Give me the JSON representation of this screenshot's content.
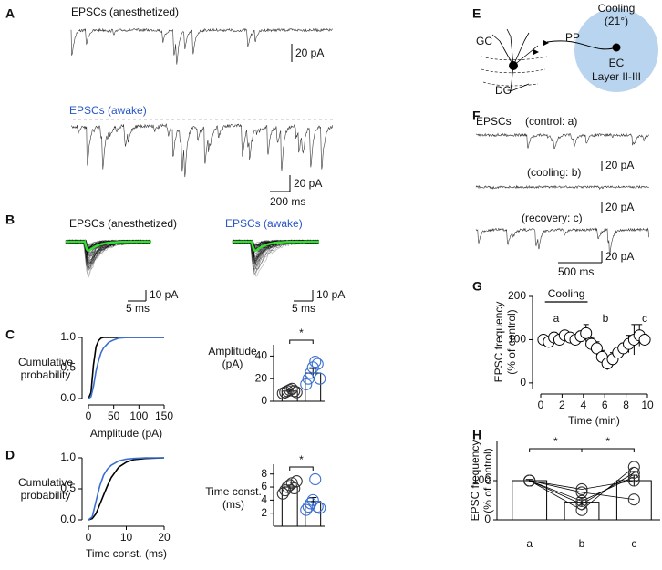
{
  "panel_labels": [
    "A",
    "B",
    "C",
    "D",
    "E",
    "F",
    "G",
    "H"
  ],
  "trace_labels": [
    "EPSCs (anesthetized)",
    "EPSCs (awake)",
    "EPSCs (anesthetized)",
    "EPSCs (awake)",
    "EPSCs",
    "(control: a)",
    "(cooling: b)",
    "(recovery: c)"
  ],
  "scale_bars": [
    "20 pA",
    "20 pA",
    "200 ms",
    "10 pA",
    "5 ms",
    "10 pA",
    "5 ms",
    "20 pA",
    "20 pA",
    "20 pA",
    "500 ms"
  ],
  "diagram": {
    "title": "Cooling",
    "temperature": "(21°)",
    "region": "EC",
    "layer": "Layer II-III",
    "gc": "GC",
    "pp": "PP",
    "dg": "DG"
  },
  "chart_data": [
    {
      "type": "line",
      "ylabel": [
        "Cumulative",
        "probability"
      ],
      "ylabel_orientation": "horizontal",
      "xlabel": "Amplitude (pA)",
      "x": [
        0,
        5,
        10,
        15,
        20,
        25,
        30,
        40,
        50,
        60,
        80,
        100,
        150
      ],
      "series": [
        {
          "color": "#000000",
          "values": [
            0,
            0.1,
            0.55,
            0.85,
            0.95,
            0.99,
            1,
            1,
            1,
            1,
            1,
            1,
            1
          ]
        },
        {
          "color": "#3a6fd0",
          "values": [
            0,
            0.03,
            0.2,
            0.45,
            0.62,
            0.75,
            0.83,
            0.92,
            0.96,
            0.99,
            1,
            1,
            1
          ]
        }
      ],
      "xlim": [
        0,
        150
      ],
      "xticks": [
        0,
        50,
        100,
        150
      ],
      "ylim": [
        0,
        1
      ],
      "yticks": [
        {
          "value": 0,
          "label": "0.0"
        },
        {
          "value": 0.5,
          "label": "0.5"
        },
        {
          "value": 1,
          "label": "1.0"
        }
      ]
    },
    {
      "type": "bar",
      "ylabel": [
        "Amplitude",
        "(pA)"
      ],
      "ylabel_orientation": "horizontal",
      "categories": [
        null,
        null
      ],
      "values": [
        9,
        25
      ],
      "errors": [
        1.2,
        4
      ],
      "point_colors": [
        "#333333",
        "#3a6fd0"
      ],
      "points": [
        [
          7,
          8,
          9,
          10,
          11,
          9,
          8
        ],
        [
          15,
          20,
          25,
          30,
          35,
          33,
          20
        ]
      ],
      "annotations": [
        "*"
      ],
      "ylim": [
        0,
        50
      ],
      "yticks": [
        0,
        20,
        40
      ]
    },
    {
      "type": "line",
      "ylabel": [
        "Cumulative",
        "probability"
      ],
      "ylabel_orientation": "horizontal",
      "xlabel": "Time const. (ms)",
      "x": [
        0,
        1,
        2,
        3,
        4,
        5,
        6,
        8,
        10,
        12,
        15,
        20
      ],
      "series": [
        {
          "color": "#000000",
          "values": [
            0,
            0.02,
            0.1,
            0.25,
            0.4,
            0.55,
            0.68,
            0.85,
            0.93,
            0.97,
            0.99,
            1
          ]
        },
        {
          "color": "#3a6fd0",
          "values": [
            0,
            0.05,
            0.3,
            0.55,
            0.72,
            0.82,
            0.88,
            0.95,
            0.98,
            0.99,
            1,
            1
          ]
        }
      ],
      "xlim": [
        0,
        20
      ],
      "xticks": [
        0,
        10,
        20
      ],
      "ylim": [
        0,
        1
      ],
      "yticks": [
        {
          "value": 0,
          "label": "0.0"
        },
        {
          "value": 0.5,
          "label": "0.5"
        },
        {
          "value": 1,
          "label": "1.0"
        }
      ]
    },
    {
      "type": "bar",
      "ylabel": [
        "Time const.",
        "(ms)"
      ],
      "ylabel_orientation": "horizontal",
      "categories": [
        null,
        null
      ],
      "values": [
        6,
        3.8
      ],
      "errors": [
        0.3,
        0.6
      ],
      "point_colors": [
        "#333333",
        "#3a6fd0"
      ],
      "points": [
        [
          5,
          5.5,
          6,
          6.3,
          6.6,
          5.8,
          6.9
        ],
        [
          2.5,
          3,
          3.5,
          4,
          7.2,
          3,
          2.8
        ]
      ],
      "annotations": [
        "*"
      ],
      "ylim": [
        0,
        9.5
      ],
      "yticks": [
        2,
        4,
        6,
        8
      ]
    },
    {
      "type": "scatter",
      "ylabel": [
        "EPSC frequency",
        "(% of control)"
      ],
      "ylabel_orientation": "vertical",
      "xlabel": "Time (min)",
      "x": [
        0.25,
        0.75,
        1.25,
        1.75,
        2.25,
        2.75,
        3.25,
        3.75,
        4.25,
        4.75,
        5.25,
        5.75,
        6.25,
        6.75,
        7.25,
        7.75,
        8.25,
        8.75,
        9.25,
        9.75
      ],
      "values": [
        100,
        95,
        105,
        100,
        110,
        105,
        100,
        108,
        115,
        90,
        80,
        60,
        45,
        55,
        70,
        80,
        90,
        100,
        110,
        100
      ],
      "errors": [
        8,
        10,
        12,
        10,
        10,
        8,
        10,
        12,
        20,
        15,
        15,
        15,
        15,
        15,
        12,
        12,
        20,
        35,
        25,
        12
      ],
      "annotations": [
        "a",
        "b",
        "c"
      ],
      "cooling": {
        "label": "Cooling",
        "span": [
          0.4,
          4.4
        ]
      },
      "xlim": [
        0,
        10
      ],
      "xticks": [
        0,
        2,
        4,
        6,
        8,
        10
      ],
      "ylim": [
        -15,
        200
      ],
      "yticks": [
        0,
        100,
        200
      ]
    },
    {
      "type": "bar",
      "ylabel": [
        "EPSC frequency",
        "(% of control)"
      ],
      "ylabel_orientation": "vertical",
      "categories": [
        "a",
        "b",
        "c"
      ],
      "values": [
        100,
        45,
        100
      ],
      "errors": [
        3,
        12,
        14
      ],
      "point_colors": [
        "#333333",
        "#333333",
        "#333333"
      ],
      "points": [
        [
          100,
          100,
          100,
          100,
          100
        ],
        [
          70,
          78,
          40,
          25,
          48
        ],
        [
          52,
          100,
          120,
          135,
          110
        ]
      ],
      "paired": true,
      "annotations": [
        "*",
        "*"
      ],
      "ylim": [
        0,
        200
      ],
      "yticks": [
        0,
        100
      ]
    }
  ]
}
